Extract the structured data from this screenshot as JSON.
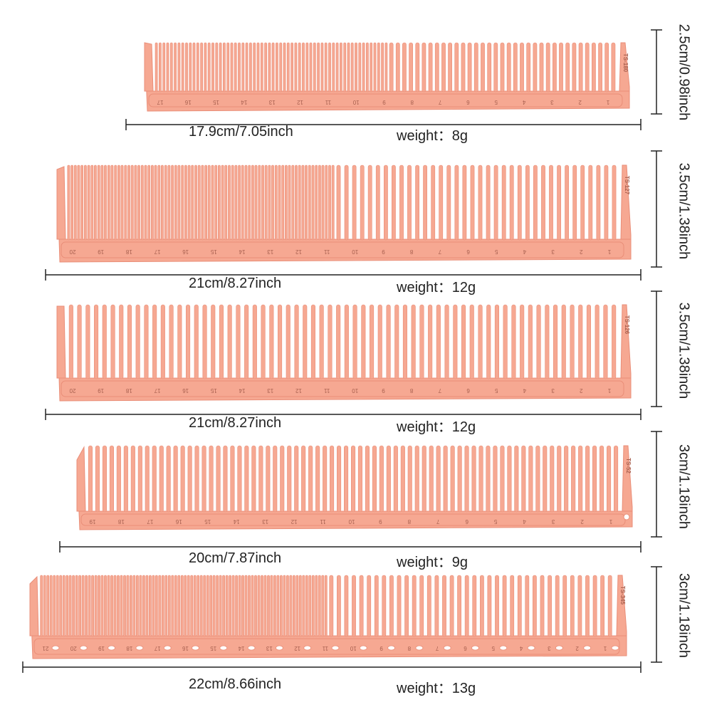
{
  "colors": {
    "comb_fill": "#f6a892",
    "comb_edge": "#e98e78",
    "comb_mark": "#a8604f",
    "line": "#222222",
    "text": "#222222"
  },
  "combs": [
    {
      "model": "TS-180",
      "length_label": "17.9cm/7.05inch",
      "weight_label": "weight：8g",
      "height_label": "2.5cm/0.98inch",
      "ruler_numbers": [
        "17",
        "16",
        "15",
        "14",
        "13",
        "12",
        "11",
        "10",
        "9",
        "8",
        "7",
        "6",
        "5",
        "4",
        "3",
        "2",
        "1"
      ]
    },
    {
      "model": "TS-127",
      "length_label": "21cm/8.27inch",
      "weight_label": "weight：12g",
      "height_label": "3.5cm/1.38inch",
      "ruler_numbers": [
        "20",
        "19",
        "18",
        "17",
        "16",
        "15",
        "14",
        "13",
        "12",
        "11",
        "10",
        "9",
        "8",
        "7",
        "6",
        "5",
        "4",
        "3",
        "2",
        "1"
      ]
    },
    {
      "model": "TS-126",
      "length_label": "21cm/8.27inch",
      "weight_label": "weight：12g",
      "height_label": "3.5cm/1.38inch",
      "ruler_numbers": [
        "20",
        "19",
        "18",
        "17",
        "16",
        "15",
        "14",
        "13",
        "12",
        "11",
        "10",
        "9",
        "8",
        "7",
        "6",
        "5",
        "4",
        "3",
        "2",
        "1"
      ]
    },
    {
      "model": "TS-52",
      "length_label": "20cm/7.87inch",
      "weight_label": "weight：9g",
      "height_label": "3cm/1.18inch",
      "ruler_numbers": [
        "19",
        "18",
        "17",
        "16",
        "15",
        "14",
        "13",
        "12",
        "11",
        "10",
        "9",
        "8",
        "7",
        "6",
        "5",
        "4",
        "3",
        "2",
        "1"
      ]
    },
    {
      "model": "TS-345",
      "length_label": "22cm/8.66inch",
      "weight_label": "weight：13g",
      "height_label": "3cm/1.18inch",
      "ruler_numbers": [
        "21",
        "20",
        "19",
        "18",
        "17",
        "16",
        "15",
        "14",
        "13",
        "12",
        "11",
        "10",
        "9",
        "8",
        "7",
        "6",
        "5",
        "4",
        "3",
        "2",
        "1"
      ]
    }
  ]
}
